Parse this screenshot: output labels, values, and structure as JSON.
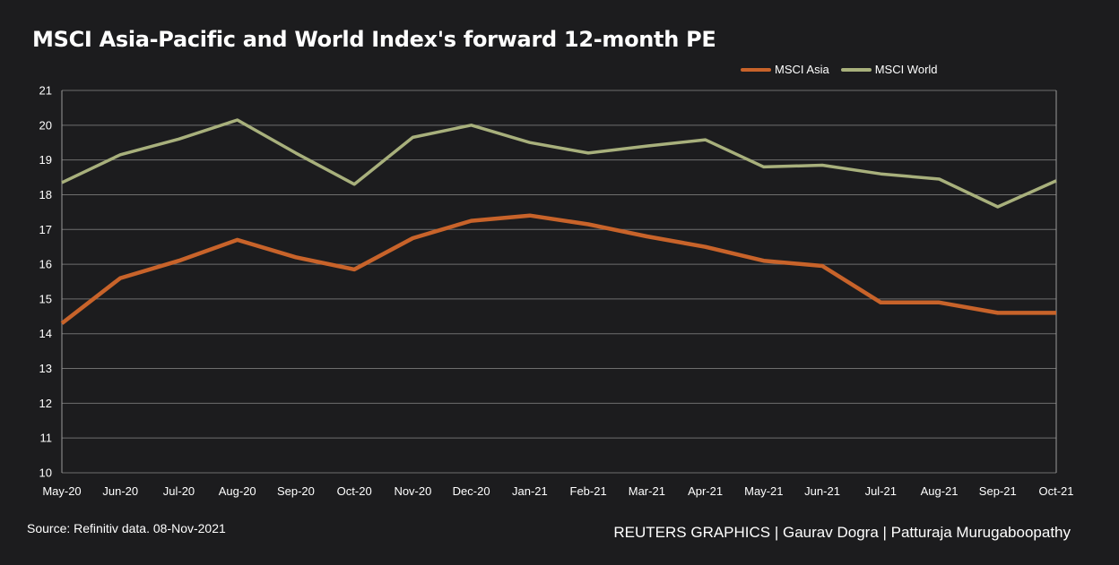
{
  "header": {
    "title": "MSCI Asia-Pacific and World Index's forward 12-month PE"
  },
  "footer": {
    "source": "Source: Refinitiv data. 08-Nov-2021",
    "credit": "REUTERS GRAPHICS | Gaurav Dogra | Patturaja Murugaboopathy"
  },
  "colors": {
    "background": "#1c1c1e",
    "grid": "#6e6e6e",
    "axis": "#9a9a9a",
    "text": "#ffffff"
  },
  "chart_data": {
    "type": "line",
    "title": "MSCI Asia-Pacific and World Index's forward 12-month PE",
    "xlabel": "",
    "ylabel": "",
    "ylim": [
      10,
      21
    ],
    "yticks": [
      10,
      11,
      12,
      13,
      14,
      15,
      16,
      17,
      18,
      19,
      20,
      21
    ],
    "grid": true,
    "legend_position": "top-right",
    "categories": [
      "May-20",
      "Jun-20",
      "Jul-20",
      "Aug-20",
      "Sep-20",
      "Oct-20",
      "Nov-20",
      "Dec-20",
      "Jan-21",
      "Feb-21",
      "Mar-21",
      "Apr-21",
      "May-21",
      "Jun-21",
      "Jul-21",
      "Aug-21",
      "Sep-21",
      "Oct-21"
    ],
    "series": [
      {
        "name": "MSCI Asia",
        "color": "#c8632a",
        "values": [
          14.3,
          15.6,
          16.1,
          16.7,
          16.2,
          15.85,
          16.75,
          17.25,
          17.4,
          17.15,
          16.8,
          16.5,
          16.1,
          15.95,
          14.9,
          14.9,
          14.6,
          14.6
        ]
      },
      {
        "name": "MSCI World",
        "color": "#a8b07c",
        "values": [
          18.35,
          19.15,
          19.6,
          20.15,
          19.2,
          18.3,
          19.65,
          20.0,
          19.5,
          19.2,
          19.4,
          19.58,
          18.8,
          18.85,
          18.6,
          18.45,
          17.65,
          18.4
        ]
      }
    ]
  }
}
